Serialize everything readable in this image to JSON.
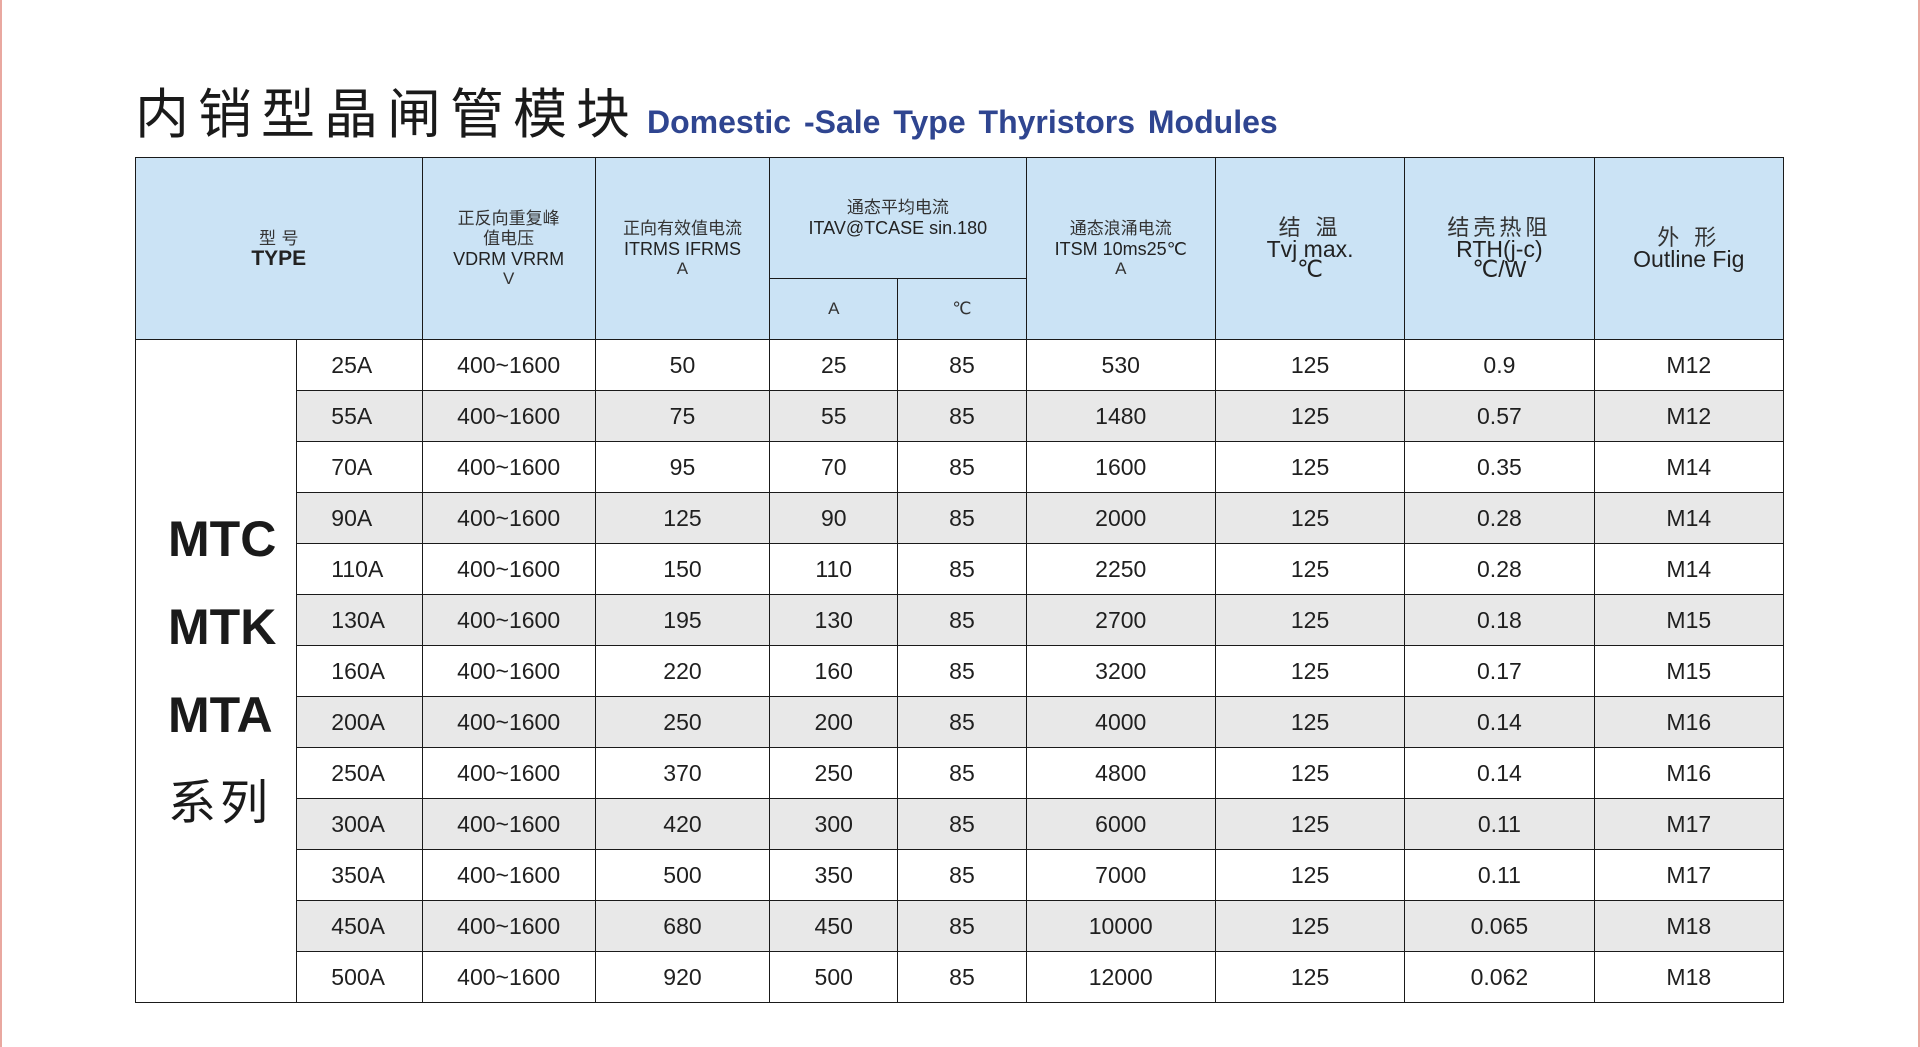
{
  "title": {
    "cn": "内销型晶闸管模块",
    "en": "Domestic -Sale  Type  Thyristors Modules"
  },
  "header": {
    "type_cn": "型 号",
    "type_en": "TYPE",
    "vdrm_cn1": "正反向重复峰",
    "vdrm_cn2": "值电压",
    "vdrm_sym": "VDRM VRRM",
    "vdrm_unit": "V",
    "itrms_cn": "正向有效值电流",
    "itrms_sym": "ITRMS IFRMS",
    "itrms_unit": "A",
    "itav_cn": "通态平均电流",
    "itav_sym": "ITAV@TCASE sin.180",
    "itav_unit_a": "A",
    "itav_unit_c": "℃",
    "itsm_cn": "通态浪涌电流",
    "itsm_sym": "ITSM 10ms25℃",
    "itsm_unit": "A",
    "tvj_cn": "结 温",
    "tvj_sym": "Tvj max.",
    "tvj_unit": "℃",
    "rth_cn": "结壳热阻",
    "rth_sym": "RTH(j-c)",
    "rth_unit": "℃/W",
    "outline_cn": "外 形",
    "outline_en": "Outline Fig"
  },
  "series": {
    "line1": "MTC",
    "line2": "MTK",
    "line3": "MTA",
    "suffix": "系列"
  },
  "rows": [
    {
      "model": "25A",
      "vdrm": "400~1600",
      "itrms": "50",
      "itav": "25",
      "tcase": "85",
      "itsm": "530",
      "tvj": "125",
      "rth": "0.9",
      "outline": "M12"
    },
    {
      "model": "55A",
      "vdrm": "400~1600",
      "itrms": "75",
      "itav": "55",
      "tcase": "85",
      "itsm": "1480",
      "tvj": "125",
      "rth": "0.57",
      "outline": "M12"
    },
    {
      "model": "70A",
      "vdrm": "400~1600",
      "itrms": "95",
      "itav": "70",
      "tcase": "85",
      "itsm": "1600",
      "tvj": "125",
      "rth": "0.35",
      "outline": "M14"
    },
    {
      "model": "90A",
      "vdrm": "400~1600",
      "itrms": "125",
      "itav": "90",
      "tcase": "85",
      "itsm": "2000",
      "tvj": "125",
      "rth": "0.28",
      "outline": "M14"
    },
    {
      "model": "110A",
      "vdrm": "400~1600",
      "itrms": "150",
      "itav": "110",
      "tcase": "85",
      "itsm": "2250",
      "tvj": "125",
      "rth": "0.28",
      "outline": "M14"
    },
    {
      "model": "130A",
      "vdrm": "400~1600",
      "itrms": "195",
      "itav": "130",
      "tcase": "85",
      "itsm": "2700",
      "tvj": "125",
      "rth": "0.18",
      "outline": "M15"
    },
    {
      "model": "160A",
      "vdrm": "400~1600",
      "itrms": "220",
      "itav": "160",
      "tcase": "85",
      "itsm": "3200",
      "tvj": "125",
      "rth": "0.17",
      "outline": "M15"
    },
    {
      "model": "200A",
      "vdrm": "400~1600",
      "itrms": "250",
      "itav": "200",
      "tcase": "85",
      "itsm": "4000",
      "tvj": "125",
      "rth": "0.14",
      "outline": "M16"
    },
    {
      "model": "250A",
      "vdrm": "400~1600",
      "itrms": "370",
      "itav": "250",
      "tcase": "85",
      "itsm": "4800",
      "tvj": "125",
      "rth": "0.14",
      "outline": "M16"
    },
    {
      "model": "300A",
      "vdrm": "400~1600",
      "itrms": "420",
      "itav": "300",
      "tcase": "85",
      "itsm": "6000",
      "tvj": "125",
      "rth": "0.11",
      "outline": "M17"
    },
    {
      "model": "350A",
      "vdrm": "400~1600",
      "itrms": "500",
      "itav": "350",
      "tcase": "85",
      "itsm": "7000",
      "tvj": "125",
      "rth": "0.11",
      "outline": "M17"
    },
    {
      "model": "450A",
      "vdrm": "400~1600",
      "itrms": "680",
      "itav": "450",
      "tcase": "85",
      "itsm": "10000",
      "tvj": "125",
      "rth": "0.065",
      "outline": "M18"
    },
    {
      "model": "500A",
      "vdrm": "400~1600",
      "itrms": "920",
      "itav": "500",
      "tcase": "85",
      "itsm": "12000",
      "tvj": "125",
      "rth": "0.062",
      "outline": "M18"
    }
  ]
}
